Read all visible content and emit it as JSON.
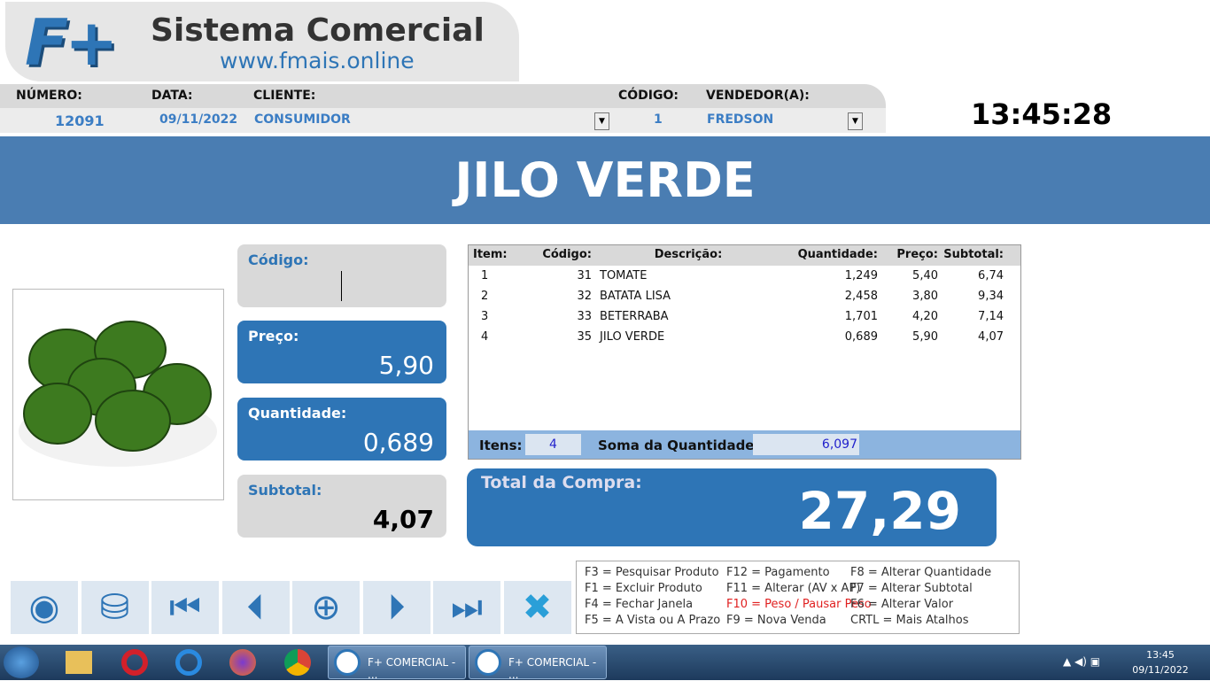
{
  "logo": {
    "mark": "F+",
    "title": "Sistema Comercial",
    "url": "www.fmais.online"
  },
  "header": {
    "fields": [
      {
        "label": "NÚMERO:",
        "value": "12091"
      },
      {
        "label": "DATA:",
        "value": "09/11/2022"
      },
      {
        "label": "CLIENTE:",
        "value": "CONSUMIDOR"
      },
      {
        "label": "CÓDIGO:",
        "value": "1"
      },
      {
        "label": "VENDEDOR(A):",
        "value": "FREDSON"
      }
    ],
    "clock": "13:45:28"
  },
  "product": {
    "name": "JILO VERDE"
  },
  "panels": {
    "code": {
      "label": "Código:"
    },
    "price": {
      "label": "Preço:",
      "value": "5,90"
    },
    "quantity": {
      "label": "Quantidade:",
      "value": "0,689"
    },
    "subtotal": {
      "label": "Subtotal:",
      "value": "4,07"
    }
  },
  "table": {
    "columns": [
      "Item:",
      "Código:",
      "Descrição:",
      "Quantidade:",
      "Preço:",
      "Subtotal:"
    ],
    "rows": [
      [
        "1",
        "31",
        "TOMATE",
        "1,249",
        "5,40",
        "6,74"
      ],
      [
        "2",
        "32",
        "BATATA LISA",
        "2,458",
        "3,80",
        "9,34"
      ],
      [
        "3",
        "33",
        "BETERRABA",
        "1,701",
        "4,20",
        "7,14"
      ],
      [
        "4",
        "35",
        "JILO VERDE",
        "0,689",
        "5,90",
        "4,07"
      ]
    ],
    "items_label": "Itens:",
    "items": "4",
    "sum_label": "Soma da Quantidade:",
    "sum": "6,097"
  },
  "total": {
    "label": "Total da Compra:",
    "value": "27,29"
  },
  "shortcuts": [
    "F3 = Pesquisar Produto",
    "F1 = Excluir Produto",
    "F4 = Fechar Janela",
    "F5 = A Vista ou A Prazo",
    "F12 = Pagamento",
    "F11 = Alterar (AV x AP)",
    "F10 = Peso / Pausar Peso",
    "F9 = Nova Venda",
    "F8 = Alterar Quantidade",
    "F7 = Alterar Subtotal",
    "F6 = Alterar Valor",
    "CRTL = Mais Atalhos"
  ],
  "taskbar": {
    "windows": [
      "F+ COMERCIAL - ...",
      "F+ COMERCIAL - ..."
    ],
    "time": "13:45",
    "date": "09/11/2022"
  }
}
